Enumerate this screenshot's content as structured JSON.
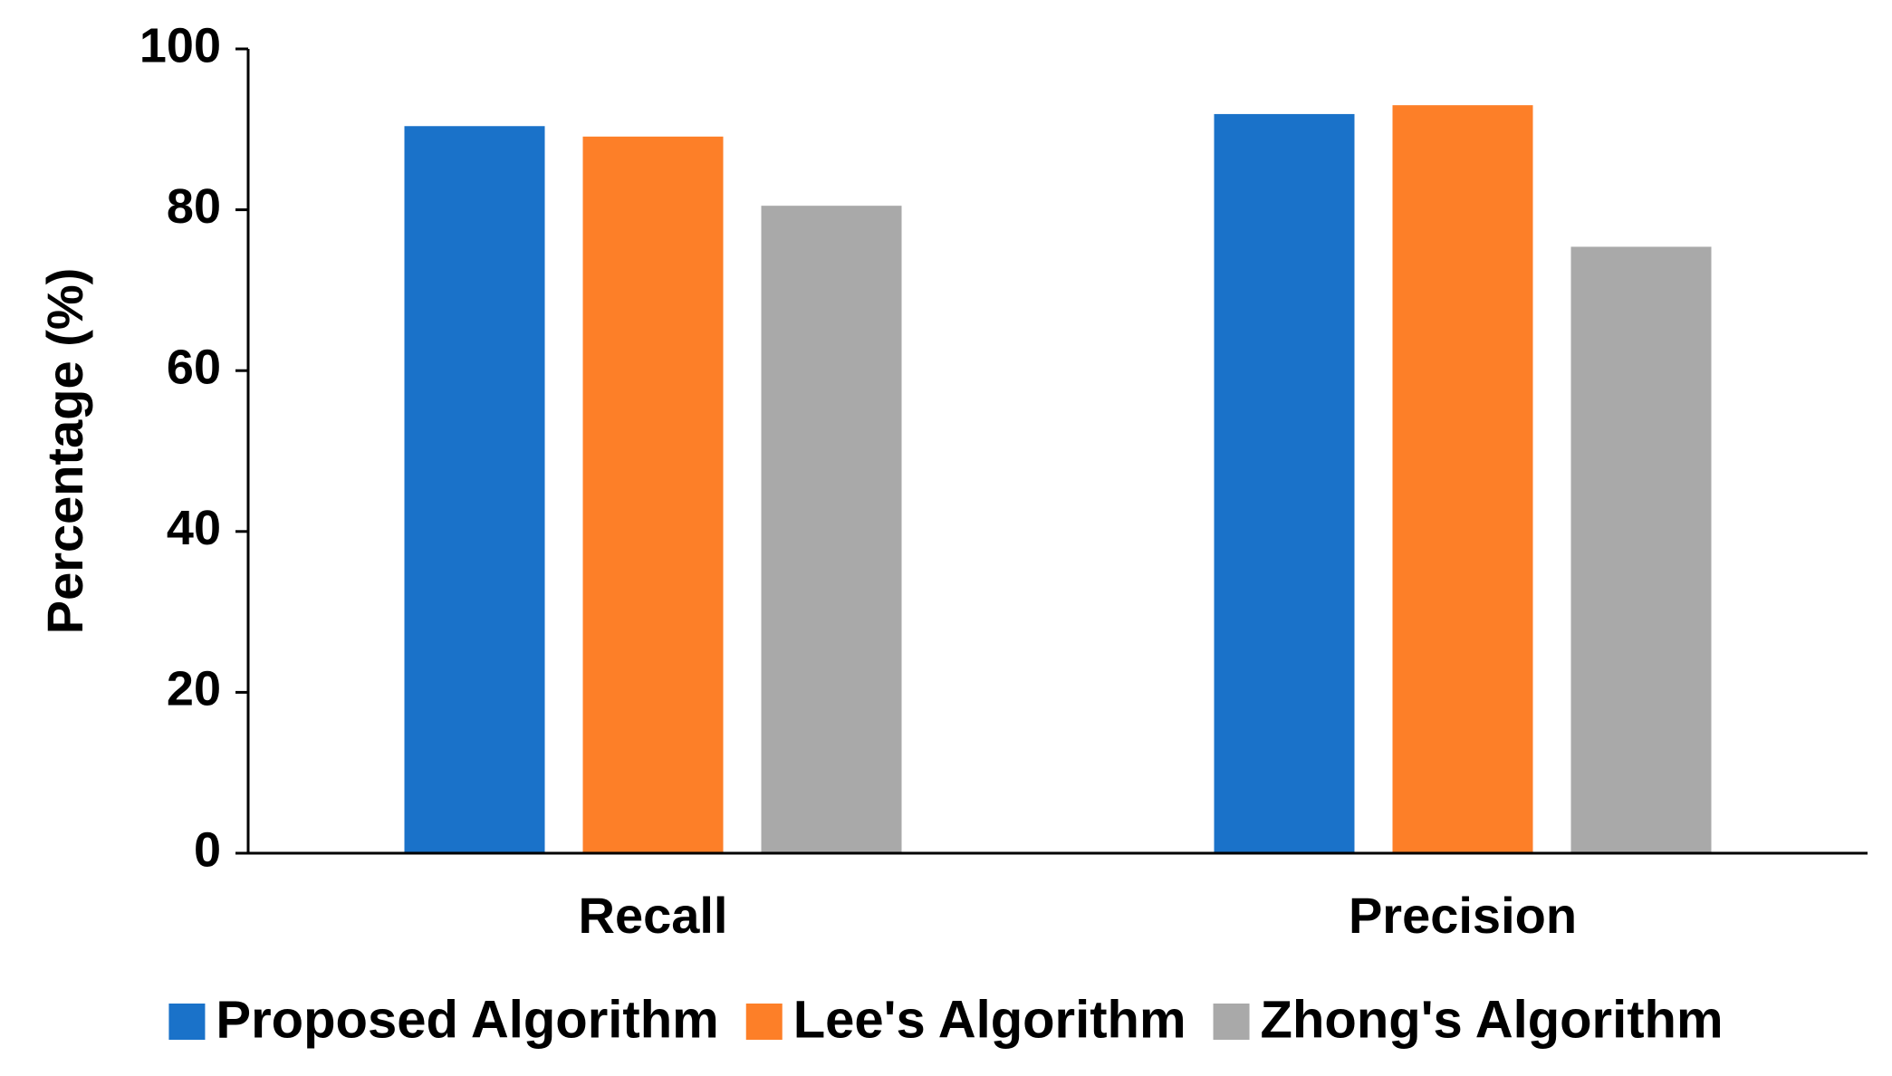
{
  "chart_data": {
    "type": "bar",
    "y_label": "Percentage (%)",
    "categories": [
      "Recall",
      "Precision"
    ],
    "series": [
      {
        "name": "Proposed Algorithm",
        "color": "#1a72c9",
        "values": [
          90.4,
          91.9
        ]
      },
      {
        "name": "Lee's Algorithm",
        "color": "#fd7f28",
        "values": [
          89.1,
          93.0
        ]
      },
      {
        "name": "Zhong's Algorithm",
        "color": "#a9a9a9",
        "values": [
          80.5,
          75.4
        ]
      }
    ],
    "ylim": [
      0,
      100
    ],
    "yticks": [
      0,
      20,
      40,
      60,
      80,
      100
    ],
    "grid": false,
    "legend": "bottom"
  }
}
